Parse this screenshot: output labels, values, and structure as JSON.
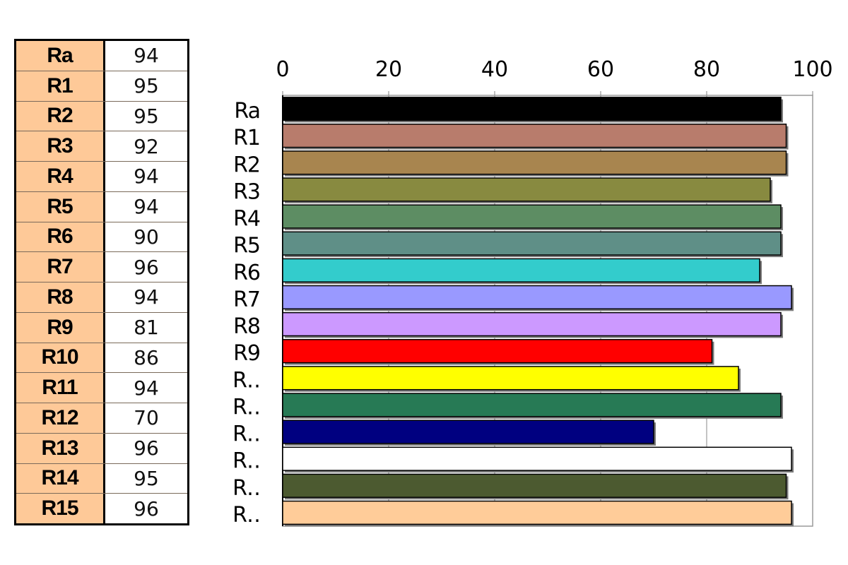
{
  "table": {
    "rows": [
      {
        "name": "Ra",
        "value": "94"
      },
      {
        "name": "R1",
        "value": "95"
      },
      {
        "name": "R2",
        "value": "95"
      },
      {
        "name": "R3",
        "value": "92"
      },
      {
        "name": "R4",
        "value": "94"
      },
      {
        "name": "R5",
        "value": "94"
      },
      {
        "name": "R6",
        "value": "90"
      },
      {
        "name": "R7",
        "value": "96"
      },
      {
        "name": "R8",
        "value": "94"
      },
      {
        "name": "R9",
        "value": "81"
      },
      {
        "name": "R10",
        "value": "86"
      },
      {
        "name": "R11",
        "value": "94"
      },
      {
        "name": "R12",
        "value": "70"
      },
      {
        "name": "R13",
        "value": "96"
      },
      {
        "name": "R14",
        "value": "95"
      },
      {
        "name": "R15",
        "value": "96"
      }
    ]
  },
  "chart_data": {
    "type": "bar",
    "orientation": "horizontal",
    "categories": [
      "Ra",
      "R1",
      "R2",
      "R3",
      "R4",
      "R5",
      "R6",
      "R7",
      "R8",
      "R9",
      "R10",
      "R11",
      "R12",
      "R13",
      "R14",
      "R15"
    ],
    "category_labels": [
      "Ra",
      "R1",
      "R2",
      "R3",
      "R4",
      "R5",
      "R6",
      "R7",
      "R8",
      "R9",
      "R‥",
      "R‥",
      "R‥",
      "R‥",
      "R‥",
      "R‥"
    ],
    "values": [
      94,
      95,
      95,
      92,
      94,
      94,
      90,
      96,
      94,
      81,
      86,
      94,
      70,
      96,
      95,
      96
    ],
    "colors": [
      "#000000",
      "#b87c6c",
      "#a8854f",
      "#888a40",
      "#5d8d63",
      "#5f8f87",
      "#33cccc",
      "#9999ff",
      "#cc99ff",
      "#ff0000",
      "#ffff00",
      "#277a55",
      "#000080",
      "#ffffff",
      "#4c5a30",
      "#ffcc99"
    ],
    "xlim": [
      0,
      100
    ],
    "xticks": [
      "0",
      "20",
      "40",
      "60",
      "80",
      "100"
    ],
    "axis_position": "top",
    "grid": true,
    "legend": "none",
    "title": "",
    "xlabel": "",
    "ylabel": ""
  }
}
